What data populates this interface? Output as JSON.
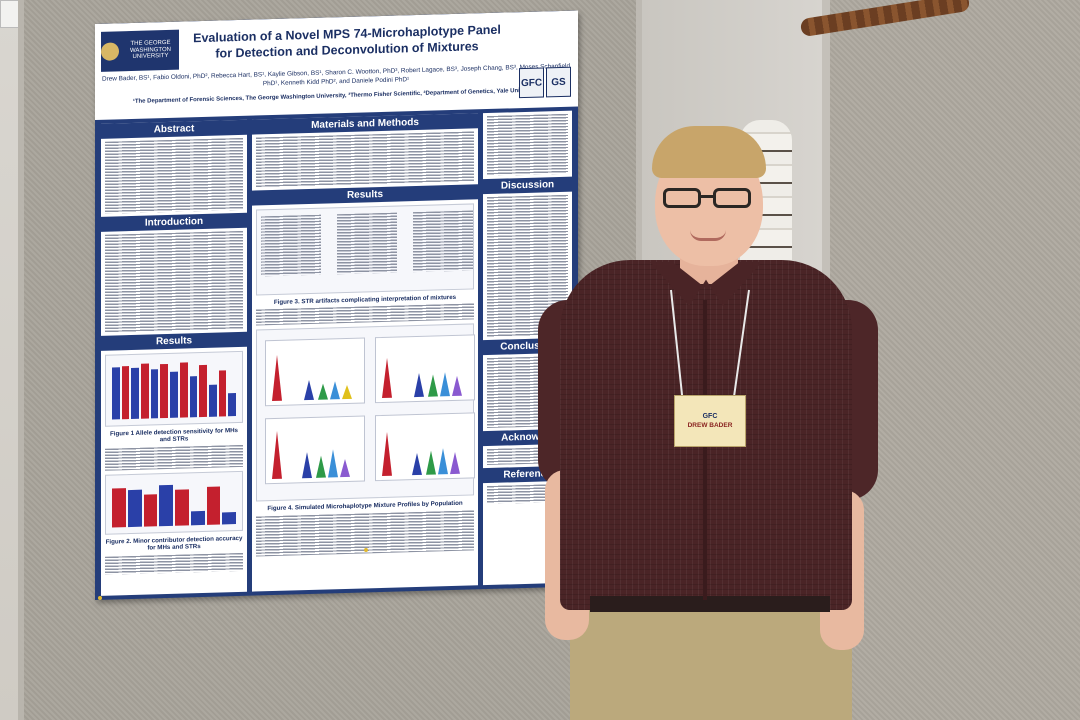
{
  "poster": {
    "university": "THE GEORGE WASHINGTON UNIVERSITY",
    "title": "Evaluation of a Novel MPS 74-Microhaplotype Panel for Detection and Deconvolution of Mixtures",
    "authors": "Drew Bader, BS¹, Fabio Oldoni, PhD², Rebecca Hart, BS¹, Kaylie Gibson, BS¹, Sharon C. Wootton, PhD³, Robert Lagace, BS³, Joseph Chang, BS³, Moses Schanfield PhD¹, Kenneth Kidd PhD², and Daniele Podini PhD¹",
    "affiliations": "¹The Department of Forensic Sciences, The George Washington University, ³Thermo Fisher Scientific, ²Department of Genetics, Yale University",
    "logo_right": [
      "GFC",
      "GS"
    ],
    "sections": {
      "abstract": "Abstract",
      "introduction": "Introduction",
      "results_left": "Results",
      "materials": "Materials and Methods",
      "results_center": "Results",
      "discussion": "Discussion",
      "conclusion": "Conclusion",
      "acknowledgements": "Acknowled",
      "references": "Reference"
    },
    "figures": {
      "fig1": "Figure 1 Allele detection sensitivity for MHs and STRs",
      "fig2": "Figure 2. Minor contributor detection accuracy for MHs and STRs",
      "fig3": "Figure 3. STR artifacts complicating interpretation of mixtures",
      "fig4": "Figure 4. Simulated Microhaplotype Mixture Profiles by Population"
    }
  },
  "badge": {
    "name": "DREW BADER"
  },
  "colors": {
    "poster_blue": "#243d7a",
    "bar_red": "#c4202e",
    "bar_blue": "#2a40a8",
    "shirt": "#4a2426",
    "pants": "#bba97c"
  }
}
